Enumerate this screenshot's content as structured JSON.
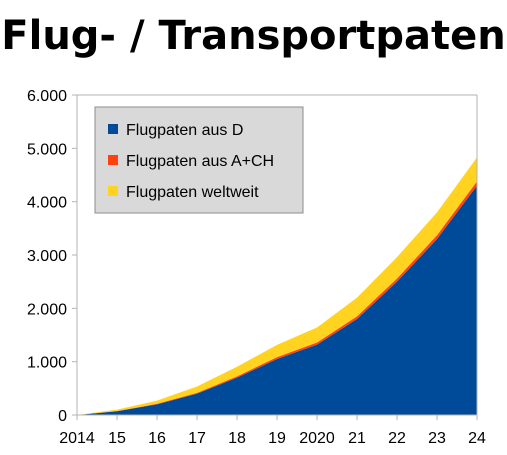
{
  "chart_data": {
    "type": "area",
    "stacked": true,
    "title": "Flug- / Transportpaten",
    "xlabel": "",
    "ylabel": "",
    "categories": [
      "2014",
      "15",
      "16",
      "17",
      "18",
      "19",
      "2020",
      "21",
      "22",
      "23",
      "24"
    ],
    "x_ticks": [
      "2014",
      "15",
      "16",
      "17",
      "18",
      "19",
      "2020",
      "21",
      "22",
      "23",
      "24"
    ],
    "y_ticks": [
      "0",
      "1.000",
      "2.000",
      "3.000",
      "4.000",
      "5.000",
      "6.000"
    ],
    "ylim": [
      0,
      6000
    ],
    "grid": false,
    "legend_position": "top-left",
    "series": [
      {
        "name": "Flugpaten aus D",
        "color": "#004a9a",
        "values": [
          0,
          70,
          200,
          400,
          700,
          1050,
          1320,
          1800,
          2500,
          3300,
          4300
        ]
      },
      {
        "name": "Flugpaten aus A+CH",
        "color": "#ff420e",
        "values": [
          0,
          5,
          10,
          15,
          25,
          35,
          40,
          50,
          60,
          70,
          80
        ]
      },
      {
        "name": "Flugpaten weltweit",
        "color": "#ffd320",
        "values": [
          0,
          25,
          60,
          120,
          180,
          230,
          280,
          350,
          400,
          430,
          450
        ]
      }
    ]
  }
}
